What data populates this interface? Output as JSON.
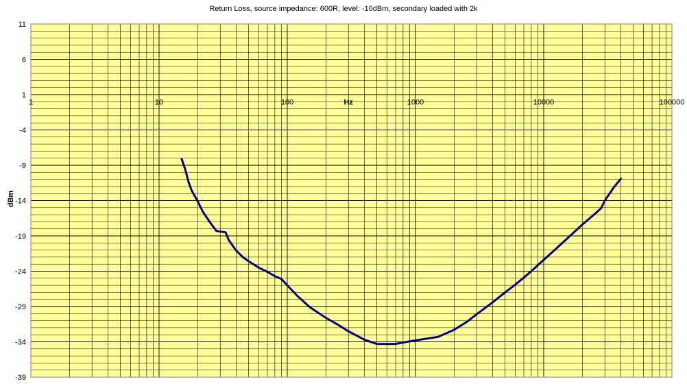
{
  "chart_data": {
    "type": "line",
    "title": "Return Loss, source impedance: 600R, level: -10dBm, secondary loaded with 2k",
    "xlabel": "Hz",
    "ylabel": "dBm",
    "x_scale": "log",
    "xlim": [
      1,
      100000
    ],
    "ylim": [
      -39,
      11
    ],
    "x_ticks": [
      1,
      10,
      100,
      1000,
      10000,
      100000
    ],
    "x_tick_labels": [
      "1",
      "10",
      "100",
      "1000",
      "10000",
      "100000"
    ],
    "y_ticks": [
      11,
      6,
      1,
      -4,
      -9,
      -14,
      -19,
      -24,
      -29,
      -34,
      -39
    ],
    "y_tick_labels": [
      "11",
      "6",
      "1",
      "-4",
      "-9",
      "-14",
      "-19",
      "-24",
      "-29",
      "-34",
      "-39"
    ],
    "grid": true,
    "plot_background": "#ffff99",
    "line_color": "#000080",
    "series": [
      {
        "x": [
          15,
          16,
          17,
          18,
          20,
          22,
          25,
          28,
          30,
          33,
          35,
          40,
          45,
          50,
          60,
          70,
          80,
          90,
          100,
          120,
          150,
          200,
          250,
          300,
          400,
          500,
          600,
          700,
          800,
          1000,
          1500,
          2000,
          2500,
          3000,
          4000,
          5000,
          6000,
          7000,
          8000,
          10000,
          12000,
          15000,
          20000,
          25000,
          28000,
          30000,
          35000,
          40000
        ],
        "y": [
          -8.1,
          -9.6,
          -11.4,
          -12.6,
          -14.1,
          -15.6,
          -17.1,
          -18.3,
          -18.4,
          -18.5,
          -19.6,
          -21.1,
          -22.0,
          -22.6,
          -23.5,
          -24.1,
          -24.7,
          -25.1,
          -26.0,
          -27.5,
          -29.1,
          -30.6,
          -31.6,
          -32.5,
          -33.7,
          -34.3,
          -34.3,
          -34.3,
          -34.1,
          -33.8,
          -33.3,
          -32.3,
          -31.2,
          -30.1,
          -28.4,
          -27.0,
          -25.9,
          -24.9,
          -24.0,
          -22.4,
          -21.1,
          -19.5,
          -17.4,
          -15.9,
          -15.1,
          -14.0,
          -12.2,
          -10.9
        ]
      }
    ]
  }
}
